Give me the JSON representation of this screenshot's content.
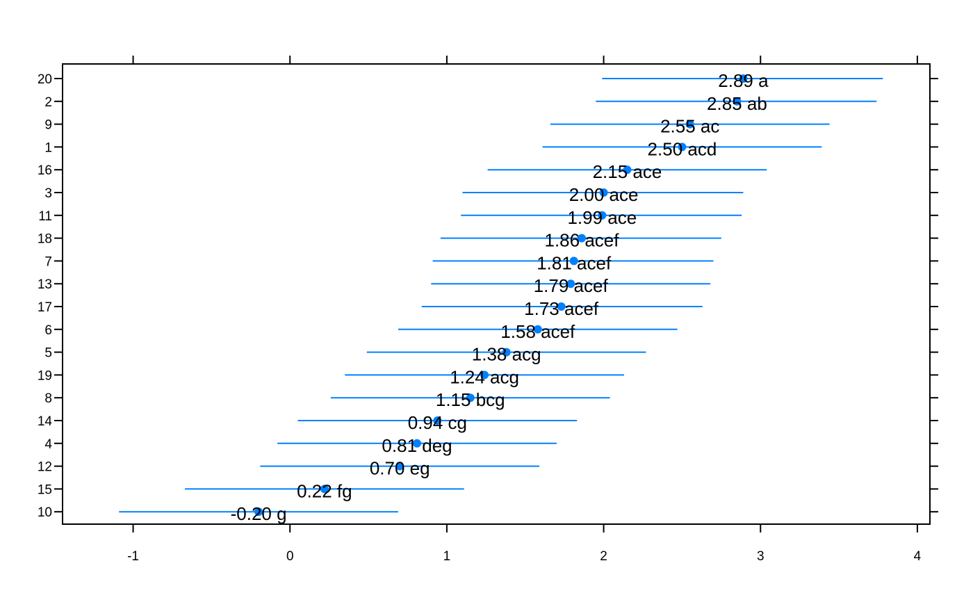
{
  "chart_data": {
    "type": "scatter",
    "title": "",
    "xlabel": "",
    "ylabel": "",
    "xlim": [
      -1.45,
      4.08
    ],
    "x_ticks": [
      -1,
      0,
      1,
      2,
      3,
      4
    ],
    "x_tick_labels": [
      "-1",
      "0",
      "1",
      "2",
      "3",
      "4"
    ],
    "grid": false,
    "legend": "none",
    "series": [
      {
        "categories": [
          "20",
          "2",
          "9",
          "1",
          "16",
          "3",
          "11",
          "18",
          "7",
          "13",
          "17",
          "6",
          "5",
          "19",
          "8",
          "14",
          "4",
          "12",
          "15",
          "10"
        ],
        "values": [
          2.89,
          2.85,
          2.55,
          2.5,
          2.15,
          2.0,
          1.99,
          1.86,
          1.81,
          1.79,
          1.73,
          1.58,
          1.38,
          1.24,
          1.15,
          0.94,
          0.81,
          0.7,
          0.22,
          -0.2
        ],
        "lower": [
          1.99,
          1.95,
          1.66,
          1.61,
          1.26,
          1.1,
          1.09,
          0.96,
          0.91,
          0.9,
          0.84,
          0.69,
          0.49,
          0.35,
          0.26,
          0.05,
          -0.08,
          -0.19,
          -0.67,
          -1.09
        ],
        "upper": [
          3.78,
          3.74,
          3.44,
          3.39,
          3.04,
          2.89,
          2.88,
          2.75,
          2.7,
          2.68,
          2.63,
          2.47,
          2.27,
          2.13,
          2.04,
          1.83,
          1.7,
          1.59,
          1.11,
          0.69
        ],
        "labels": [
          "2.89 a",
          "2.85 ab",
          "2.55 ac",
          "2.50 acd",
          "2.15 ace",
          "2.00 ace",
          "1.99 ace",
          "1.86 acef",
          "1.81 acef",
          "1.79 acef",
          "1.73 acef",
          "1.58 acef",
          "1.38 acg",
          "1.24 acg",
          "1.15 bcg",
          "0.94 cg",
          "0.81 deg",
          "0.70 eg",
          "0.22 fg",
          "-0.20 g"
        ]
      }
    ],
    "colors": {
      "point": "#0080ff",
      "interval": "#0080ff",
      "axis": "#000000"
    }
  }
}
